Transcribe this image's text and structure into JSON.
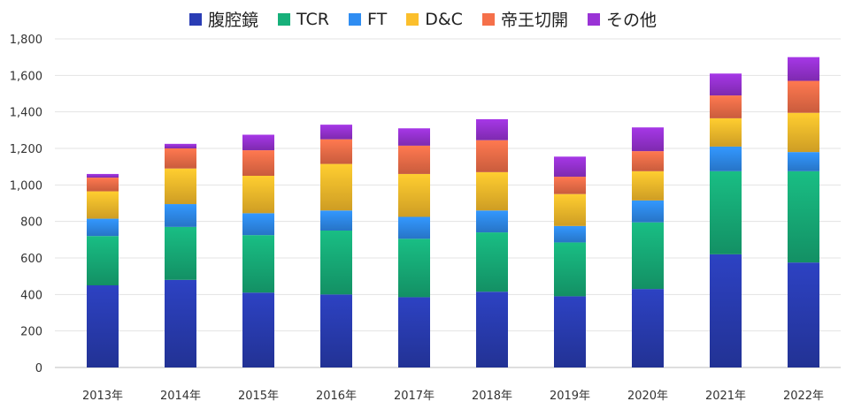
{
  "chart_data": {
    "type": "bar",
    "stacked": true,
    "title": "",
    "xlabel": "",
    "ylabel": "",
    "ylim": [
      0,
      1800
    ],
    "yticks": [
      0,
      200,
      400,
      600,
      800,
      1000,
      1200,
      1400,
      1600,
      1800
    ],
    "ytick_labels": [
      "0",
      "200",
      "400",
      "600",
      "800",
      "1,000",
      "1,200",
      "1,400",
      "1,600",
      "1,800"
    ],
    "grid": true,
    "legend_position": "top",
    "categories": [
      "2013年",
      "2014年",
      "2015年",
      "2016年",
      "2017年",
      "2018年",
      "2019年",
      "2020年",
      "2021年",
      "2022年"
    ],
    "series": [
      {
        "name": "腹腔鏡",
        "color": "#2a3db5",
        "values": [
          450,
          480,
          410,
          400,
          385,
          415,
          390,
          430,
          620,
          575
        ]
      },
      {
        "name": "TCR",
        "color": "#17b07a",
        "values": [
          270,
          290,
          315,
          350,
          320,
          325,
          295,
          365,
          455,
          500
        ]
      },
      {
        "name": "FT",
        "color": "#2f8df2",
        "values": [
          95,
          125,
          120,
          110,
          120,
          120,
          90,
          120,
          135,
          105
        ]
      },
      {
        "name": "D&C",
        "color": "#fbbf2c",
        "values": [
          150,
          195,
          205,
          255,
          235,
          210,
          175,
          160,
          155,
          215
        ]
      },
      {
        "name": "帝王切開",
        "color": "#f5704a",
        "values": [
          75,
          110,
          140,
          135,
          155,
          175,
          95,
          110,
          125,
          175
        ]
      },
      {
        "name": "その他",
        "color": "#9a33d6",
        "values": [
          20,
          25,
          85,
          80,
          95,
          115,
          110,
          130,
          120,
          130
        ]
      }
    ]
  }
}
